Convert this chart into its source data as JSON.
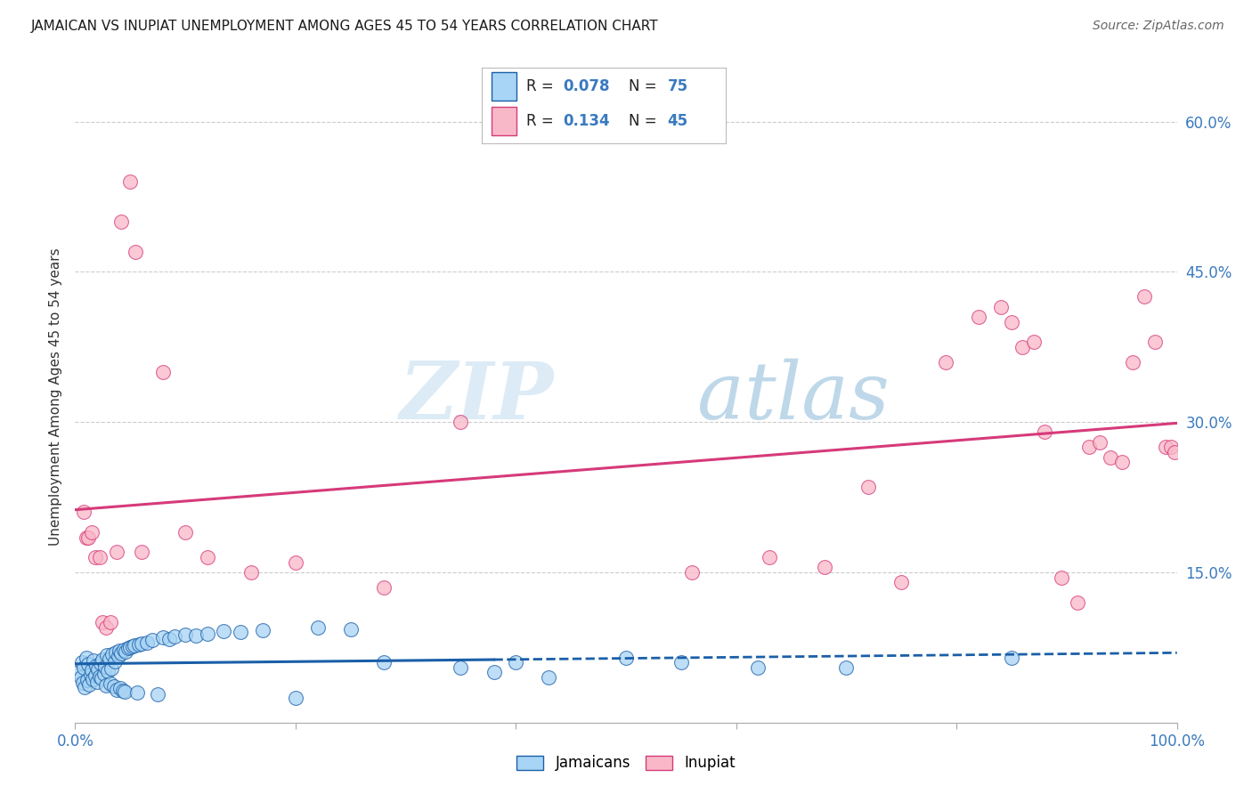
{
  "title": "JAMAICAN VS INUPIAT UNEMPLOYMENT AMONG AGES 45 TO 54 YEARS CORRELATION CHART",
  "source": "Source: ZipAtlas.com",
  "ylabel": "Unemployment Among Ages 45 to 54 years",
  "xlim": [
    0.0,
    1.0
  ],
  "ylim": [
    0.0,
    0.65
  ],
  "x_ticks": [
    0.0,
    0.2,
    0.4,
    0.6,
    0.8,
    1.0
  ],
  "x_tick_labels": [
    "0.0%",
    "",
    "",
    "",
    "",
    "100.0%"
  ],
  "y_ticks": [
    0.0,
    0.15,
    0.3,
    0.45,
    0.6
  ],
  "y_tick_labels": [
    "",
    "15.0%",
    "30.0%",
    "45.0%",
    "60.0%"
  ],
  "color_jamaican": "#a8d4f5",
  "color_inupiat": "#f9b8c8",
  "color_jamaican_line": "#1a5fa8",
  "color_inupiat_line": "#d63a7a",
  "color_grid": "#cccccc",
  "background_color": "#ffffff",
  "watermark_zip": "ZIP",
  "watermark_atlas": "atlas",
  "jamaican_x": [
    0.003,
    0.005,
    0.006,
    0.007,
    0.008,
    0.009,
    0.01,
    0.011,
    0.012,
    0.013,
    0.014,
    0.015,
    0.016,
    0.017,
    0.018,
    0.019,
    0.02,
    0.021,
    0.022,
    0.023,
    0.024,
    0.025,
    0.026,
    0.027,
    0.028,
    0.029,
    0.03,
    0.031,
    0.032,
    0.033,
    0.034,
    0.035,
    0.036,
    0.037,
    0.038,
    0.039,
    0.04,
    0.041,
    0.042,
    0.043,
    0.044,
    0.045,
    0.046,
    0.048,
    0.05,
    0.052,
    0.054,
    0.056,
    0.058,
    0.06,
    0.065,
    0.07,
    0.075,
    0.08,
    0.085,
    0.09,
    0.1,
    0.11,
    0.12,
    0.135,
    0.15,
    0.17,
    0.2,
    0.22,
    0.25,
    0.28,
    0.35,
    0.38,
    0.4,
    0.43,
    0.5,
    0.55,
    0.62,
    0.7,
    0.85
  ],
  "jamaican_y": [
    0.05,
    0.045,
    0.06,
    0.04,
    0.055,
    0.035,
    0.065,
    0.042,
    0.058,
    0.038,
    0.048,
    0.052,
    0.043,
    0.062,
    0.047,
    0.057,
    0.041,
    0.053,
    0.046,
    0.059,
    0.044,
    0.063,
    0.049,
    0.056,
    0.037,
    0.067,
    0.051,
    0.064,
    0.039,
    0.054,
    0.068,
    0.036,
    0.061,
    0.07,
    0.033,
    0.066,
    0.072,
    0.034,
    0.069,
    0.032,
    0.073,
    0.031,
    0.071,
    0.074,
    0.075,
    0.076,
    0.077,
    0.03,
    0.078,
    0.079,
    0.08,
    0.082,
    0.028,
    0.085,
    0.083,
    0.086,
    0.088,
    0.087,
    0.089,
    0.091,
    0.09,
    0.092,
    0.025,
    0.095,
    0.093,
    0.06,
    0.055,
    0.05,
    0.06,
    0.045,
    0.065,
    0.06,
    0.055,
    0.055,
    0.065
  ],
  "inupiat_x": [
    0.008,
    0.01,
    0.012,
    0.015,
    0.018,
    0.022,
    0.025,
    0.028,
    0.032,
    0.038,
    0.042,
    0.05,
    0.055,
    0.06,
    0.08,
    0.1,
    0.12,
    0.16,
    0.2,
    0.28,
    0.35,
    0.56,
    0.63,
    0.68,
    0.72,
    0.75,
    0.79,
    0.82,
    0.84,
    0.85,
    0.86,
    0.87,
    0.88,
    0.895,
    0.91,
    0.92,
    0.93,
    0.94,
    0.95,
    0.96,
    0.97,
    0.98,
    0.99,
    0.995,
    0.998
  ],
  "inupiat_y": [
    0.21,
    0.185,
    0.185,
    0.19,
    0.165,
    0.165,
    0.1,
    0.095,
    0.1,
    0.17,
    0.5,
    0.54,
    0.47,
    0.17,
    0.35,
    0.19,
    0.165,
    0.15,
    0.16,
    0.135,
    0.3,
    0.15,
    0.165,
    0.155,
    0.235,
    0.14,
    0.36,
    0.405,
    0.415,
    0.4,
    0.375,
    0.38,
    0.29,
    0.145,
    0.12,
    0.275,
    0.28,
    0.265,
    0.26,
    0.36,
    0.425,
    0.38,
    0.275,
    0.275,
    0.27
  ]
}
